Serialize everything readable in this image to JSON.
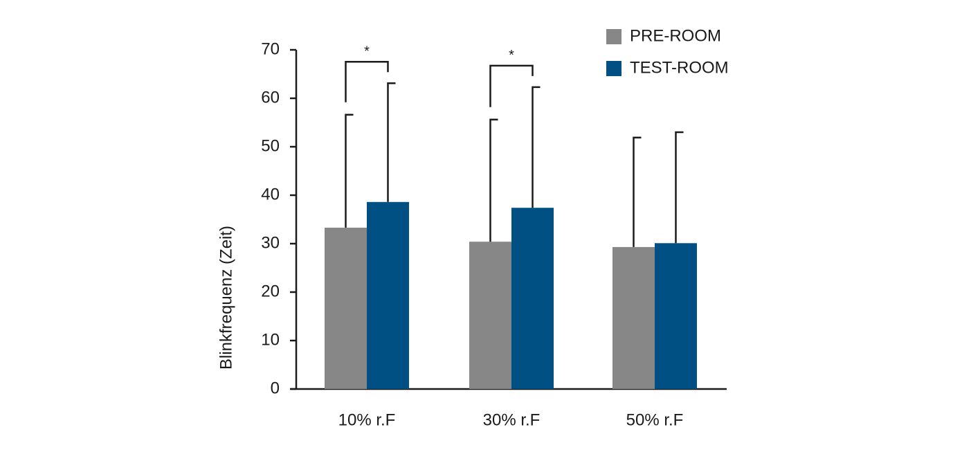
{
  "chart_data": {
    "type": "bar",
    "y_label": "Blinkfrequenz (Zeit)",
    "categories": [
      "10% r.F",
      "30% r.F",
      "50% r.F"
    ],
    "series": [
      {
        "name": "PRE-ROOM",
        "color": "#878787",
        "values": [
          33.3,
          30.4,
          29.3
        ],
        "errors": [
          23.3,
          25.2,
          22.6
        ]
      },
      {
        "name": "TEST-ROOM",
        "color": "#005083",
        "values": [
          38.6,
          37.4,
          30.1
        ],
        "errors": [
          24.5,
          24.9,
          22.9
        ]
      }
    ],
    "significance": [
      "*",
      "*",
      null
    ],
    "ylim": [
      0,
      70
    ],
    "yticks": [
      0,
      10,
      20,
      30,
      40,
      50,
      60,
      70
    ],
    "grid": false,
    "legend": "top-right"
  }
}
